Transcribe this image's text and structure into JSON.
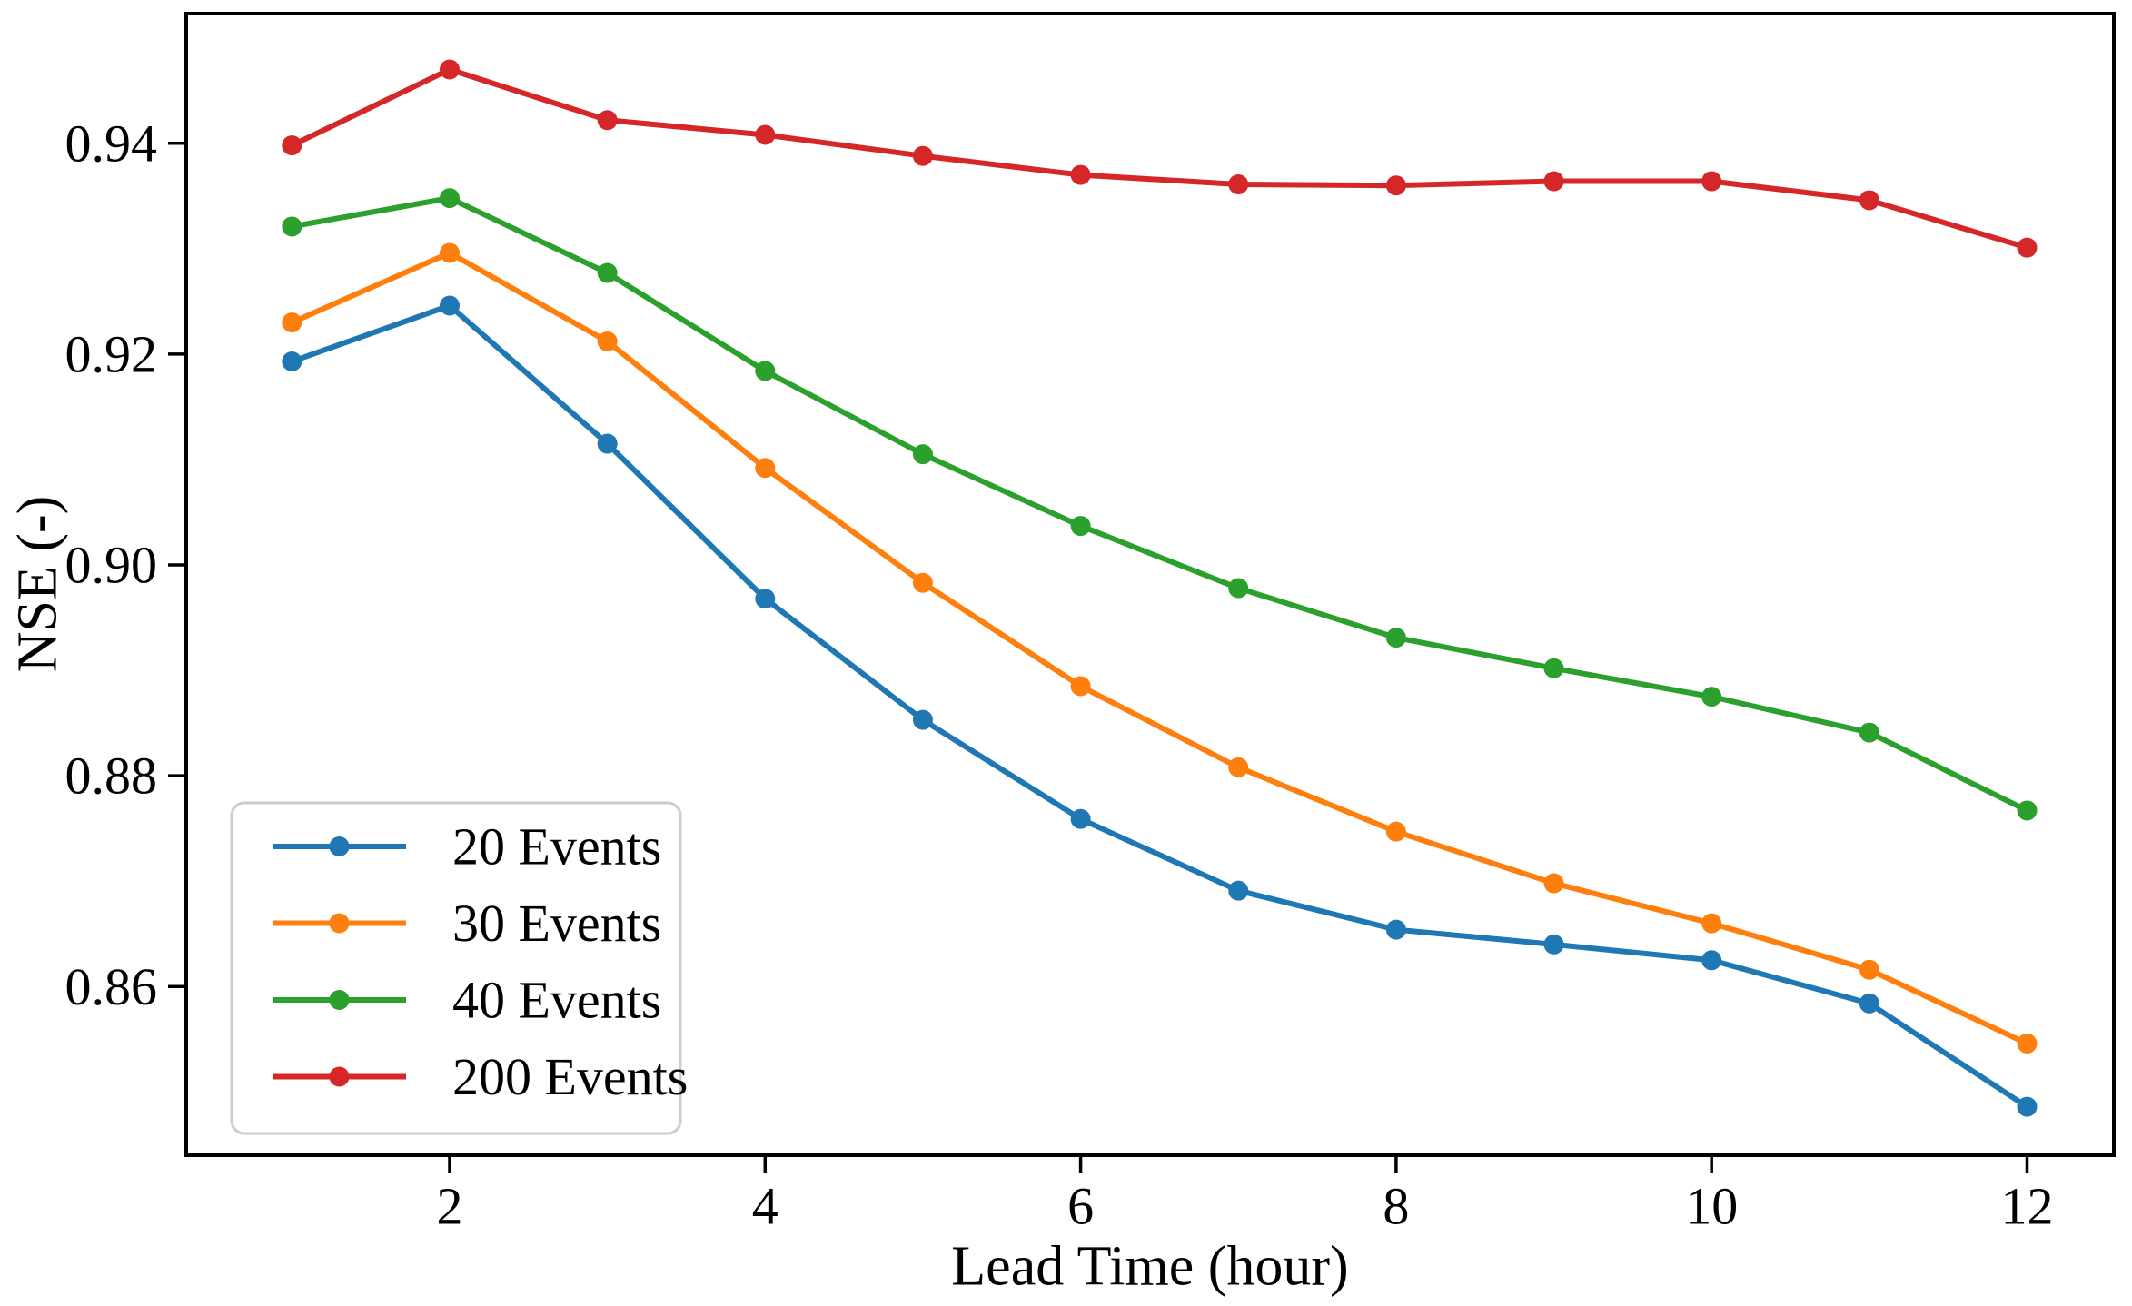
{
  "chart_data": {
    "type": "line",
    "title": "",
    "xlabel": "Lead Time (hour)",
    "ylabel": "NSE (-)",
    "x": [
      1,
      2,
      3,
      4,
      5,
      6,
      7,
      8,
      9,
      10,
      11,
      12
    ],
    "xticks": [
      2,
      4,
      6,
      8,
      10,
      12
    ],
    "xtick_labels": [
      "2",
      "4",
      "6",
      "8",
      "10",
      "12"
    ],
    "yticks": [
      0.86,
      0.88,
      0.9,
      0.92,
      0.94
    ],
    "ytick_labels": [
      "0.86",
      "0.88",
      "0.90",
      "0.92",
      "0.94"
    ],
    "xlim": [
      0.33,
      12.55
    ],
    "ylim": [
      0.844,
      0.9523
    ],
    "grid": false,
    "legend_position": "lower-left",
    "series": [
      {
        "name": "20 Events",
        "color": "#1f77b4",
        "values": [
          0.9193,
          0.9246,
          0.9115,
          0.8968,
          0.8853,
          0.8759,
          0.8691,
          0.8654,
          0.864,
          0.8625,
          0.8584,
          0.8486
        ]
      },
      {
        "name": "30 Events",
        "color": "#ff7f0e",
        "values": [
          0.923,
          0.9296,
          0.9212,
          0.9092,
          0.8983,
          0.8885,
          0.8808,
          0.8747,
          0.8698,
          0.866,
          0.8616,
          0.8546
        ]
      },
      {
        "name": "40 Events",
        "color": "#2ca02c",
        "values": [
          0.9321,
          0.9348,
          0.9277,
          0.9184,
          0.9105,
          0.9037,
          0.8978,
          0.8931,
          0.8902,
          0.8875,
          0.8841,
          0.8767
        ]
      },
      {
        "name": "200 Events",
        "color": "#d62728",
        "values": [
          0.9398,
          0.947,
          0.9422,
          0.9408,
          0.9388,
          0.937,
          0.9361,
          0.936,
          0.9364,
          0.9364,
          0.9346,
          0.9301
        ]
      }
    ],
    "style": {
      "axis_color": "#000000",
      "background": "#ffffff",
      "legend_border": "#cccccc",
      "line_width": 6,
      "marker_radius": 11
    }
  }
}
